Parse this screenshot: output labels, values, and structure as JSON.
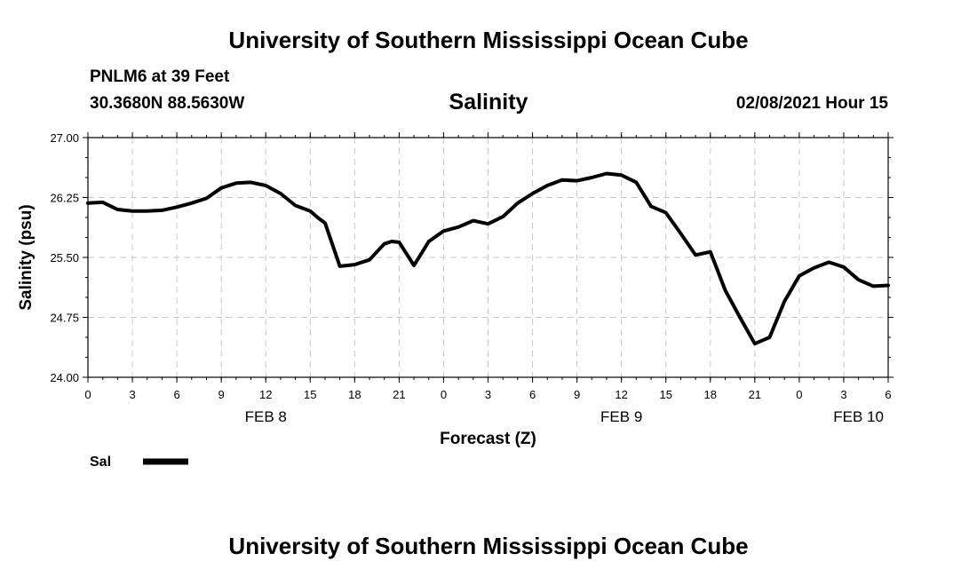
{
  "header": {
    "title": "University of Southern Mississippi Ocean Cube",
    "station": "PNLM6 at 39 Feet",
    "coords": "30.3680N 88.5630W",
    "parameter": "Salinity",
    "timestamp": "02/08/2021 Hour 15"
  },
  "footer": {
    "title": "University of Southern Mississippi Ocean Cube"
  },
  "chart_data": {
    "type": "line",
    "title": "Salinity",
    "xlabel": "Forecast (Z)",
    "ylabel": "Salinity (psu)",
    "ylim": [
      24.0,
      27.0
    ],
    "xlim": [
      0,
      54
    ],
    "x_unit": "hours since FEB 8 00Z",
    "yticks": [
      "24.00",
      "24.75",
      "25.50",
      "26.25",
      "27.00"
    ],
    "xtick_labels": [
      "0",
      "3",
      "6",
      "9",
      "12",
      "15",
      "18",
      "21",
      "0",
      "3",
      "6",
      "9",
      "12",
      "15",
      "18",
      "21",
      "0",
      "3",
      "6"
    ],
    "date_labels": [
      {
        "label": "FEB 8",
        "hour": 12
      },
      {
        "label": "FEB 9",
        "hour": 36
      },
      {
        "label": "FEB 10",
        "hour": 52
      }
    ],
    "grid": true,
    "legend_position": "bottom-left",
    "series": [
      {
        "name": "Sal",
        "color": "#000000",
        "x": [
          0,
          1,
          2,
          3,
          4,
          5,
          6,
          7,
          8,
          9,
          10,
          11,
          12,
          13,
          14,
          15,
          15.5,
          16,
          17,
          18,
          19,
          20,
          20.5,
          21,
          22,
          23,
          24,
          25,
          26,
          27,
          28,
          29,
          30,
          31,
          32,
          33,
          34,
          35,
          36,
          37,
          38,
          39,
          40,
          41,
          42,
          43,
          44,
          45,
          46,
          47,
          48,
          49,
          50,
          51,
          52,
          53,
          54
        ],
        "values": [
          26.18,
          26.19,
          26.1,
          26.08,
          26.08,
          26.09,
          26.13,
          26.18,
          26.24,
          26.37,
          26.43,
          26.44,
          26.4,
          26.3,
          26.15,
          26.08,
          26.0,
          25.93,
          25.39,
          25.41,
          25.47,
          25.67,
          25.7,
          25.69,
          25.4,
          25.7,
          25.83,
          25.88,
          25.96,
          25.92,
          26.01,
          26.18,
          26.3,
          26.4,
          26.47,
          26.46,
          26.5,
          26.55,
          26.53,
          26.44,
          26.14,
          26.06,
          25.8,
          25.53,
          25.57,
          25.09,
          24.75,
          24.42,
          24.5,
          24.95,
          25.27,
          25.37,
          25.44,
          25.38,
          25.22,
          25.14,
          25.15
        ]
      }
    ]
  }
}
